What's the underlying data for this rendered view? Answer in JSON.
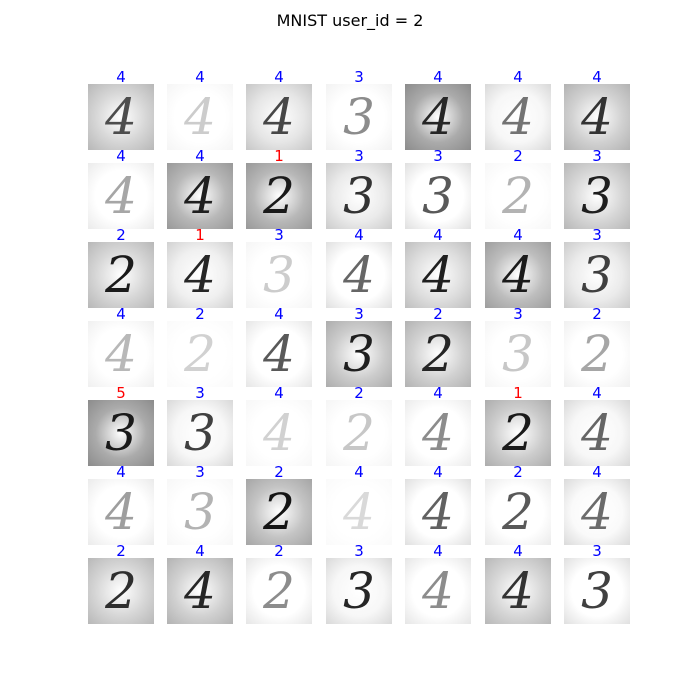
{
  "title": "MNIST user_id = 2",
  "colors": {
    "correct": "#0000ff",
    "wrong": "#ff0000"
  },
  "tiles": [
    {
      "pred": "4",
      "ok": true,
      "digit": "4",
      "bg": 0.72,
      "ink": 0.3
    },
    {
      "pred": "4",
      "ok": true,
      "digit": "4",
      "bg": 0.96,
      "ink": 0.8
    },
    {
      "pred": "4",
      "ok": true,
      "digit": "4",
      "bg": 0.78,
      "ink": 0.28
    },
    {
      "pred": "3",
      "ok": true,
      "digit": "3",
      "bg": 0.95,
      "ink": 0.55
    },
    {
      "pred": "4",
      "ok": true,
      "digit": "4",
      "bg": 0.55,
      "ink": 0.15
    },
    {
      "pred": "4",
      "ok": true,
      "digit": "4",
      "bg": 0.85,
      "ink": 0.45
    },
    {
      "pred": "4",
      "ok": true,
      "digit": "4",
      "bg": 0.7,
      "ink": 0.2
    },
    {
      "pred": "4",
      "ok": true,
      "digit": "4",
      "bg": 0.92,
      "ink": 0.65
    },
    {
      "pred": "4",
      "ok": true,
      "digit": "4",
      "bg": 0.6,
      "ink": 0.12
    },
    {
      "pred": "1",
      "ok": false,
      "digit": "2",
      "bg": 0.6,
      "ink": 0.1
    },
    {
      "pred": "3",
      "ok": true,
      "digit": "3",
      "bg": 0.8,
      "ink": 0.2
    },
    {
      "pred": "3",
      "ok": true,
      "digit": "3",
      "bg": 0.88,
      "ink": 0.35
    },
    {
      "pred": "2",
      "ok": true,
      "digit": "2",
      "bg": 0.97,
      "ink": 0.7
    },
    {
      "pred": "3",
      "ok": true,
      "digit": "3",
      "bg": 0.72,
      "ink": 0.12
    },
    {
      "pred": "2",
      "ok": true,
      "digit": "2",
      "bg": 0.72,
      "ink": 0.1
    },
    {
      "pred": "1",
      "ok": false,
      "digit": "4",
      "bg": 0.82,
      "ink": 0.15
    },
    {
      "pred": "3",
      "ok": true,
      "digit": "3",
      "bg": 0.96,
      "ink": 0.8
    },
    {
      "pred": "4",
      "ok": true,
      "digit": "4",
      "bg": 0.88,
      "ink": 0.4
    },
    {
      "pred": "4",
      "ok": true,
      "digit": "4",
      "bg": 0.75,
      "ink": 0.12
    },
    {
      "pred": "4",
      "ok": true,
      "digit": "4",
      "bg": 0.62,
      "ink": 0.1
    },
    {
      "pred": "3",
      "ok": true,
      "digit": "3",
      "bg": 0.8,
      "ink": 0.25
    },
    {
      "pred": "4",
      "ok": true,
      "digit": "4",
      "bg": 0.94,
      "ink": 0.72
    },
    {
      "pred": "2",
      "ok": true,
      "digit": "2",
      "bg": 0.98,
      "ink": 0.82
    },
    {
      "pred": "4",
      "ok": true,
      "digit": "4",
      "bg": 0.9,
      "ink": 0.35
    },
    {
      "pred": "3",
      "ok": true,
      "digit": "3",
      "bg": 0.68,
      "ink": 0.12
    },
    {
      "pred": "2",
      "ok": true,
      "digit": "2",
      "bg": 0.7,
      "ink": 0.15
    },
    {
      "pred": "3",
      "ok": true,
      "digit": "3",
      "bg": 0.96,
      "ink": 0.78
    },
    {
      "pred": "2",
      "ok": true,
      "digit": "2",
      "bg": 0.94,
      "ink": 0.65
    },
    {
      "pred": "5",
      "ok": false,
      "digit": "3",
      "bg": 0.55,
      "ink": 0.1
    },
    {
      "pred": "3",
      "ok": true,
      "digit": "3",
      "bg": 0.85,
      "ink": 0.25
    },
    {
      "pred": "4",
      "ok": true,
      "digit": "4",
      "bg": 0.97,
      "ink": 0.82
    },
    {
      "pred": "2",
      "ok": true,
      "digit": "2",
      "bg": 0.96,
      "ink": 0.78
    },
    {
      "pred": "4",
      "ok": true,
      "digit": "4",
      "bg": 0.92,
      "ink": 0.55
    },
    {
      "pred": "1",
      "ok": false,
      "digit": "2",
      "bg": 0.68,
      "ink": 0.1
    },
    {
      "pred": "4",
      "ok": true,
      "digit": "4",
      "bg": 0.85,
      "ink": 0.4
    },
    {
      "pred": "4",
      "ok": true,
      "digit": "4",
      "bg": 0.92,
      "ink": 0.62
    },
    {
      "pred": "3",
      "ok": true,
      "digit": "3",
      "bg": 0.97,
      "ink": 0.7
    },
    {
      "pred": "2",
      "ok": true,
      "digit": "2",
      "bg": 0.65,
      "ink": 0.08
    },
    {
      "pred": "4",
      "ok": true,
      "digit": "4",
      "bg": 0.98,
      "ink": 0.85
    },
    {
      "pred": "4",
      "ok": true,
      "digit": "4",
      "bg": 0.88,
      "ink": 0.38
    },
    {
      "pred": "2",
      "ok": true,
      "digit": "2",
      "bg": 0.92,
      "ink": 0.35
    },
    {
      "pred": "4",
      "ok": true,
      "digit": "4",
      "bg": 0.86,
      "ink": 0.42
    },
    {
      "pred": "2",
      "ok": true,
      "digit": "2",
      "bg": 0.72,
      "ink": 0.18
    },
    {
      "pred": "4",
      "ok": true,
      "digit": "4",
      "bg": 0.7,
      "ink": 0.15
    },
    {
      "pred": "2",
      "ok": true,
      "digit": "2",
      "bg": 0.9,
      "ink": 0.55
    },
    {
      "pred": "3",
      "ok": true,
      "digit": "3",
      "bg": 0.85,
      "ink": 0.15
    },
    {
      "pred": "4",
      "ok": true,
      "digit": "4",
      "bg": 0.9,
      "ink": 0.55
    },
    {
      "pred": "4",
      "ok": true,
      "digit": "4",
      "bg": 0.72,
      "ink": 0.2
    },
    {
      "pred": "3",
      "ok": true,
      "digit": "3",
      "bg": 0.88,
      "ink": 0.25
    }
  ]
}
